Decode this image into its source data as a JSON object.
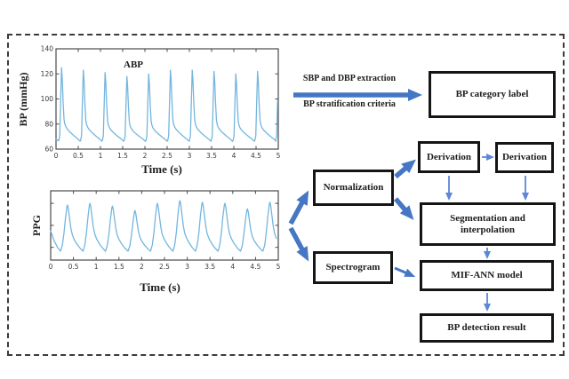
{
  "figure": {
    "background": "#ffffff",
    "border_color": "#3e3a38"
  },
  "chart_data": [
    {
      "type": "line",
      "title": "ABP",
      "xlabel": "Time (s)",
      "ylabel": "BP (mmHg)",
      "xlim": [
        0,
        5
      ],
      "ylim": [
        60,
        140
      ],
      "xticks": [
        0,
        0.5,
        1,
        1.5,
        2,
        2.5,
        3,
        3.5,
        4,
        4.5,
        5
      ],
      "xtick_labels": [
        "0",
        "0.5",
        "1",
        "1.5",
        "2",
        "2.5",
        "3",
        "3.5",
        "4",
        "4.5",
        "5"
      ],
      "yticks": [
        60,
        80,
        100,
        120,
        140
      ],
      "ytick_labels": [
        "60",
        "80",
        "100",
        "120",
        "140"
      ],
      "grid": false,
      "line_color": "#74b6de",
      "model": {
        "period": 0.49,
        "baseline": 66,
        "initial_value": 68,
        "cycle_starts": [
          0.06,
          0.55,
          1.04,
          1.53,
          2.02,
          2.51,
          3.0,
          3.49,
          3.98,
          4.47,
          4.94
        ],
        "peaks": [
          125,
          123,
          121,
          118,
          120,
          123,
          123,
          122,
          120,
          122,
          125
        ],
        "shape": [
          [
            0,
            0.01
          ],
          [
            0.05,
            0.08
          ],
          [
            0.09,
            0.55
          ],
          [
            0.13,
            1.0
          ],
          [
            0.165,
            0.86
          ],
          [
            0.2,
            0.56
          ],
          [
            0.245,
            0.3
          ],
          [
            0.28,
            0.24
          ],
          [
            0.33,
            0.2
          ],
          [
            0.42,
            0.16
          ],
          [
            0.55,
            0.12
          ],
          [
            0.72,
            0.075
          ],
          [
            0.88,
            0.035
          ],
          [
            0.98,
            0.005
          ]
        ]
      }
    },
    {
      "type": "line",
      "title": "",
      "xlabel": "Time (s)",
      "ylabel": "PPG",
      "xlim": [
        0,
        5
      ],
      "xticks": [
        0,
        0.5,
        1,
        1.5,
        2,
        2.5,
        3,
        3.5,
        4,
        4.5,
        5
      ],
      "xtick_labels": [
        "0",
        "0.5",
        "1",
        "1.5",
        "2",
        "2.5",
        "3",
        "3.5",
        "4",
        "4.5",
        "5"
      ],
      "yticks_unlabeled": [
        0.15,
        0.55,
        0.95
      ],
      "grid": false,
      "line_color": "#74b6de",
      "model": {
        "period": 0.494,
        "baseline": 0.08,
        "lead_in": [
          [
            0,
            0.45
          ],
          [
            0.07,
            0.28
          ],
          [
            0.15,
            0.15
          ]
        ],
        "cycle_starts": [
          0.217,
          0.711,
          1.205,
          1.699,
          2.193,
          2.687,
          3.181,
          3.675,
          4.169,
          4.663
        ],
        "amps": [
          0.92,
          0.95,
          0.9,
          0.82,
          0.95,
          1.0,
          0.97,
          0.95,
          0.85,
          0.97
        ],
        "shape": [
          [
            0,
            0
          ],
          [
            0.08,
            0.13
          ],
          [
            0.15,
            0.38
          ],
          [
            0.22,
            0.72
          ],
          [
            0.285,
            0.97
          ],
          [
            0.31,
            1.0
          ],
          [
            0.345,
            0.93
          ],
          [
            0.4,
            0.72
          ],
          [
            0.46,
            0.5
          ],
          [
            0.52,
            0.36
          ],
          [
            0.6,
            0.26
          ],
          [
            0.72,
            0.16
          ],
          [
            0.86,
            0.07
          ],
          [
            1.0,
            0
          ]
        ]
      }
    }
  ],
  "flow": {
    "thick_arrow_color": "#4577c4",
    "thin_arrow_color": "#5c86d6",
    "box_border_color": "#151515",
    "arrow_labels": {
      "top": "SBP and DBP extraction",
      "bottom": "BP stratification criteria"
    },
    "boxes": {
      "bp_category": "BP category label",
      "normalization": "Normalization",
      "derivation1": "Derivation",
      "derivation2": "Derivation",
      "segmentation": "Segmentation and interpolation",
      "spectrogram": "Spectrogram",
      "mif_ann": "MIF-ANN model",
      "bp_detection": "BP detection result"
    }
  }
}
